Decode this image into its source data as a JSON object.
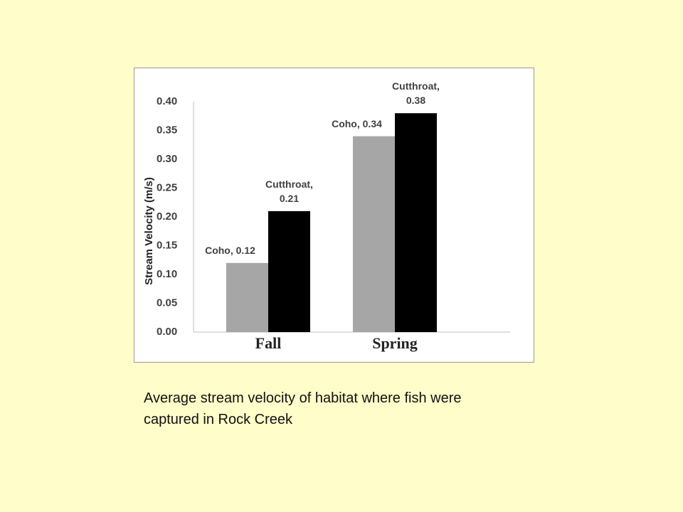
{
  "chart_data": {
    "type": "bar",
    "y_label": "Stream Velocity (m/s)",
    "categories": [
      "Fall",
      "Spring"
    ],
    "series": [
      {
        "color": "#a6a6a6",
        "values": [
          0.12,
          0.34
        ],
        "value_labels": [
          "Coho, 0.12",
          "Coho, 0.34"
        ]
      },
      {
        "color": "#000000",
        "values": [
          0.21,
          0.38
        ],
        "value_labels": [
          "Cutthroat,\n0.21",
          "Cutthroat,\n0.38"
        ]
      }
    ],
    "ylim": [
      0,
      0.4
    ],
    "yticks": [
      {
        "value": 0,
        "label": "0.00"
      },
      {
        "value": 0.05,
        "label": "0.05"
      },
      {
        "value": 0.1,
        "label": "0.10"
      },
      {
        "value": 0.15,
        "label": "0.15"
      },
      {
        "value": 0.2,
        "label": "0.20"
      },
      {
        "value": 0.25,
        "label": "0.25"
      },
      {
        "value": 0.3,
        "label": "0.30"
      },
      {
        "value": 0.35,
        "label": "0.35"
      },
      {
        "value": 0.4,
        "label": "0.40"
      }
    ],
    "grid": false
  },
  "caption": "Average stream velocity of habitat where fish were captured in Rock Creek"
}
